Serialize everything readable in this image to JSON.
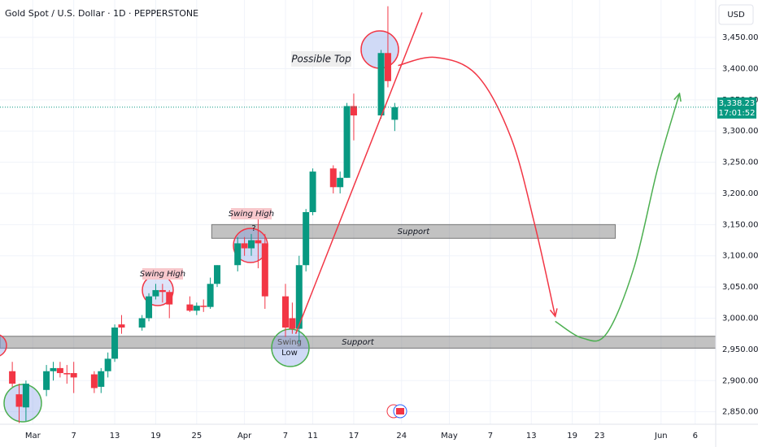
{
  "chart_data": {
    "type": "candlestick",
    "title": "Gold Spot / U.S. Dollar · 1D · PEPPERSTONE",
    "currency": "USD",
    "x": [
      57,
      58,
      59,
      62,
      63,
      64,
      65,
      66,
      69,
      70,
      71,
      72,
      73,
      76,
      77,
      78,
      79,
      80,
      83,
      84,
      85,
      86,
      87,
      90,
      91,
      92,
      93,
      94,
      97,
      98,
      99,
      100,
      101,
      104,
      105,
      106,
      107,
      111,
      112,
      113
    ],
    "open": [
      2915,
      2878,
      2857,
      2885,
      2915,
      2920,
      2912,
      2912,
      2910,
      2890,
      2915,
      2935,
      2990,
      2985,
      3000,
      3035,
      3045,
      3042,
      3022,
      3012,
      3020,
      3018,
      3055,
      3085,
      3120,
      3112,
      3125,
      3120,
      3035,
      3000,
      2983,
      3085,
      3170,
      3240,
      3210,
      3225,
      3340,
      3325,
      3425,
      3318
    ],
    "high": [
      2930,
      2895,
      2900,
      2925,
      2930,
      2930,
      2925,
      2930,
      2915,
      2920,
      2945,
      2990,
      3005,
      3005,
      3040,
      3055,
      3055,
      3045,
      3035,
      3025,
      3030,
      3065,
      3085,
      3130,
      3130,
      3135,
      3165,
      3135,
      3055,
      3025,
      3100,
      3175,
      3240,
      3245,
      3235,
      3345,
      3360,
      3430,
      3500,
      3345
    ],
    "low": [
      2890,
      2832,
      2835,
      2875,
      2900,
      2905,
      2895,
      2880,
      2880,
      2880,
      2905,
      2930,
      2975,
      2980,
      2995,
      3030,
      3025,
      3000,
      3010,
      3005,
      3010,
      3015,
      3050,
      3075,
      3100,
      3100,
      3080,
      3015,
      2970,
      2975,
      2960,
      3075,
      3165,
      3200,
      3200,
      3225,
      3285,
      3320,
      3370,
      3300
    ],
    "close": [
      2895,
      2858,
      2895,
      2915,
      2920,
      2912,
      2910,
      2905,
      2888,
      2915,
      2935,
      2985,
      2985,
      3000,
      3035,
      3045,
      3042,
      3022,
      3012,
      3020,
      3018,
      3055,
      3085,
      3120,
      3112,
      3125,
      3120,
      3035,
      2985,
      2983,
      3085,
      3170,
      3235,
      3210,
      3225,
      3340,
      3325,
      3425,
      3380,
      3338
    ],
    "up_color": "#089981",
    "down_color": "#f23645",
    "xlim": [
      55.2,
      160
    ],
    "ylim": [
      2830,
      3510
    ],
    "xticks": [
      {
        "value": 60,
        "label": "Mar"
      },
      7,
      13,
      19,
      25,
      {
        "value": 91,
        "label": "Apr"
      },
      7,
      11,
      17,
      24,
      {
        "value": 121,
        "label": "May"
      },
      7,
      13,
      19,
      23,
      {
        "value": 152,
        "label": "Jun"
      },
      6
    ],
    "xtick_values": [
      60,
      66,
      72,
      78,
      84,
      91,
      97,
      101,
      107,
      114,
      121,
      127,
      133,
      139,
      143,
      152,
      157
    ],
    "yticks": [
      {
        "value": 2850,
        "label": "2,850.00"
      },
      {
        "value": 2900,
        "label": "2,900.00"
      },
      {
        "value": 2950,
        "label": "2,950.00"
      },
      {
        "value": 3000,
        "label": "3,000.00"
      },
      {
        "value": 3050,
        "label": "3,050.00"
      },
      {
        "value": 3100,
        "label": "3,100.00"
      },
      {
        "value": 3150,
        "label": "3,150.00"
      },
      {
        "value": 3200,
        "label": "3,200.00"
      },
      {
        "value": 3250,
        "label": "3,250.00"
      },
      {
        "value": 3300,
        "label": "3,300.00"
      },
      {
        "value": 3350,
        "label": "3,350.00"
      },
      {
        "value": 3400,
        "label": "3,400.00"
      },
      {
        "value": 3450,
        "label": "3,450.00"
      }
    ],
    "grid": true,
    "last_price": {
      "value": 3338.23,
      "label": "3,338.23"
    },
    "countdown": "17:01:52",
    "zones": [
      {
        "label": "Support",
        "xlim": [
          86.2,
          145.3
        ],
        "ylim": [
          3128,
          3150
        ]
      },
      {
        "label": "Support",
        "xlim": [
          55.2,
          160
        ],
        "ylim": [
          2952,
          2971
        ]
      }
    ],
    "trendline": {
      "x": [
        98.5,
        117
      ],
      "y": [
        2975,
        3490
      ],
      "color": "#f23645"
    },
    "projections": [
      {
        "x": [
          113.5,
          119,
          125,
          130,
          133.5,
          136.5
        ],
        "y": [
          3405,
          3418,
          3390,
          3290,
          3150,
          3003
        ],
        "color": "#f23645"
      },
      {
        "x": [
          136.5,
          140.5,
          144,
          148,
          151.5,
          154.7
        ],
        "y": [
          2995,
          2968,
          2975,
          3080,
          3240,
          3360
        ],
        "color": "#4caf50"
      }
    ],
    "annotations": {
      "possible_top": "Possible Top",
      "swing_high_1": "Swing High",
      "swing_high_2": "Swing High",
      "question": "?",
      "swing_low": [
        "Swing",
        "Low"
      ]
    }
  }
}
